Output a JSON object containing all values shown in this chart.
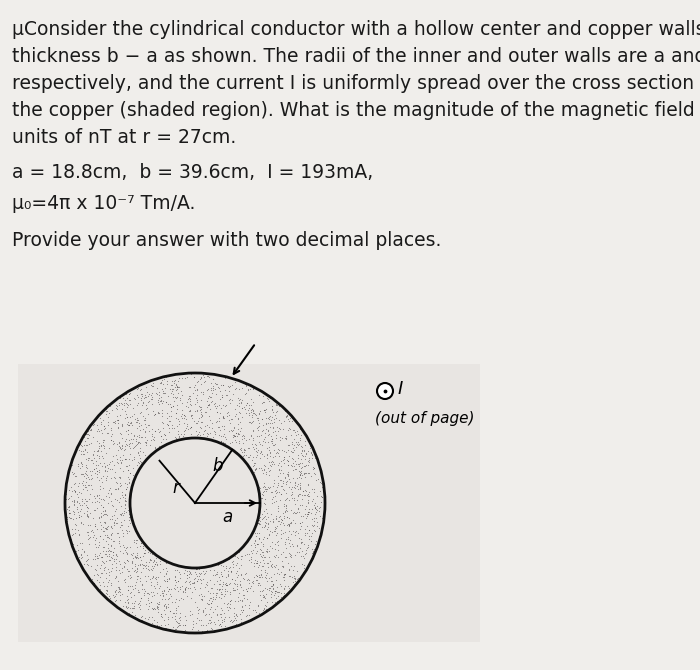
{
  "bg_color": "#f0eeeb",
  "diagram_bg_color": "#e8e5e2",
  "line1": "μConsider the cylindrical conductor with a hollow center and copper walls of",
  "line2": "thickness b − a as shown. The radii of the inner and outer walls are a and b",
  "line3": "respectively, and the current I is uniformly spread over the cross section of",
  "line4": "the copper (shaded region). What is the magnitude of the magnetic field in",
  "line5": "units of nT at r = 27cm.",
  "line6": "a = 18.8cm,  b = 39.6cm,  I = 193mA,",
  "line7": "μ₀=4π x 10⁻⁷ Tm/A.",
  "line8": "Provide your answer with two decimal places.",
  "font_size_main": 13.5,
  "text_color": "#1a1a1a",
  "shading_color": "#b0a89f",
  "inner_bg_color": "#e8e5e2",
  "circle_edge_color": "#111111"
}
